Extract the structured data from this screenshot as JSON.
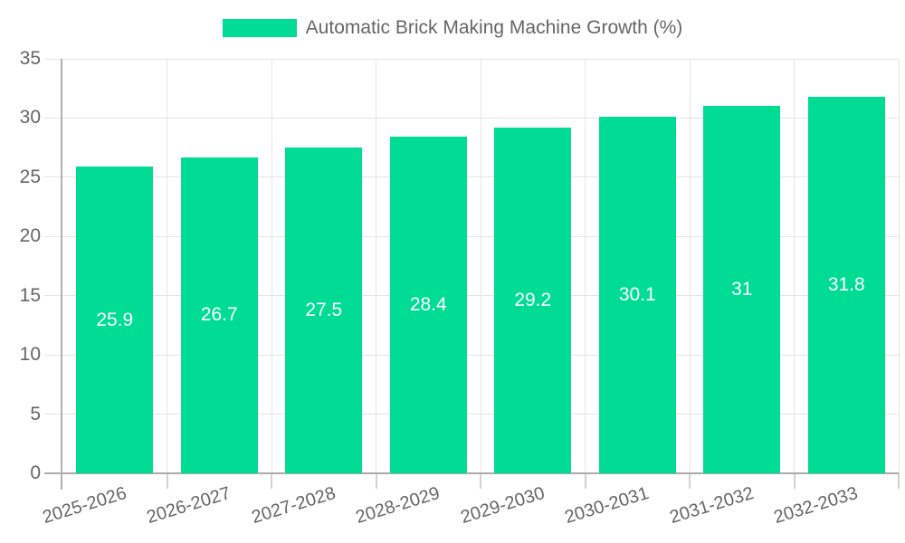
{
  "legend": {
    "label": "Automatic Brick Making Machine Growth (%)"
  },
  "colors": {
    "bar": "#00DC94",
    "text": "#666666",
    "grid": "#e5e5e5",
    "axis": "#ababab",
    "value_label": "#ffffff"
  },
  "chart_data": {
    "type": "bar",
    "title": "Automatic Brick Making Machine Growth (%)",
    "categories": [
      "2025-2026",
      "2026-2027",
      "2027-2028",
      "2028-2029",
      "2029-2030",
      "2030-2031",
      "2031-2032",
      "2032-2033"
    ],
    "values": [
      25.9,
      26.7,
      27.5,
      28.4,
      29.2,
      30.1,
      31,
      31.8
    ],
    "value_labels": [
      "25.9",
      "26.7",
      "27.5",
      "28.4",
      "29.2",
      "30.1",
      "31",
      "31.8"
    ],
    "xlabel": "",
    "ylabel": "",
    "ylim": [
      0,
      35
    ],
    "y_ticks": [
      0,
      5,
      10,
      15,
      20,
      25,
      30,
      35
    ],
    "grid": true,
    "legend_position": "top-center",
    "bar_color": "#00DC94",
    "value_label_position": "center",
    "x_label_rotation_deg": -17
  }
}
